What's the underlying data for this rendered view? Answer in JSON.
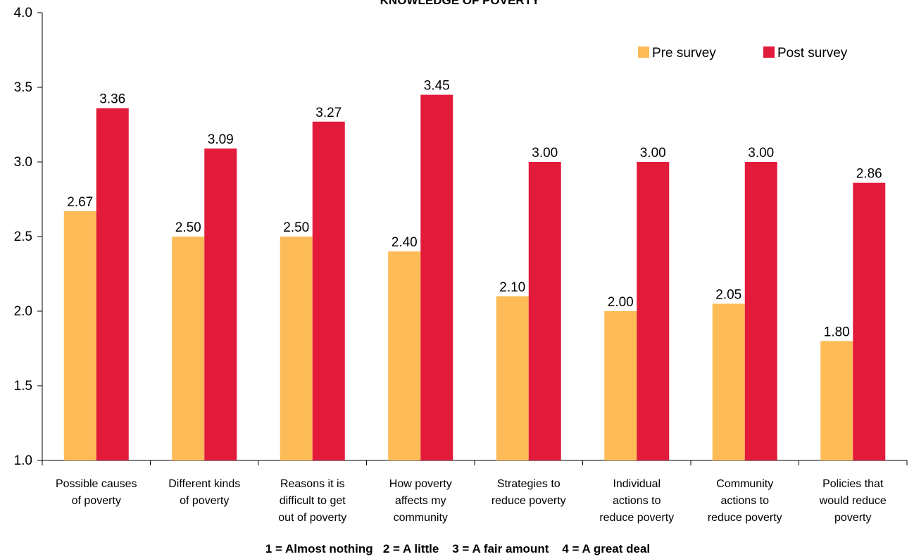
{
  "chart_data": {
    "type": "bar",
    "title": "KNOWLEDGE OF POVERTY",
    "xlabel": "1 = Almost nothing   2 = A little    3 = A fair amount    4 = A great deal",
    "ylabel": "",
    "ylim": [
      1.0,
      4.0
    ],
    "yticks": [
      "1.0",
      "1.5",
      "2.0",
      "2.5",
      "3.0",
      "3.5",
      "4.0"
    ],
    "grid": false,
    "legend_position": "top-right",
    "categories": [
      [
        "Possible causes",
        "of poverty"
      ],
      [
        "Different kinds",
        "of poverty"
      ],
      [
        "Reasons it is",
        "difficult to get",
        "out of poverty"
      ],
      [
        "How poverty",
        "affects my",
        "community"
      ],
      [
        "Strategies to",
        "reduce poverty"
      ],
      [
        "Individual",
        "actions to",
        "reduce poverty"
      ],
      [
        "Community",
        "actions to",
        "reduce poverty"
      ],
      [
        "Policies that",
        "would reduce",
        "poverty"
      ]
    ],
    "series": [
      {
        "name": "Pre survey",
        "color": "#FDBB57",
        "values": [
          2.67,
          2.5,
          2.5,
          2.4,
          2.1,
          2.0,
          2.05,
          1.8
        ],
        "labels": [
          "2.67",
          "2.50",
          "2.50",
          "2.40",
          "2.10",
          "2.00",
          "2.05",
          "1.80"
        ]
      },
      {
        "name": "Post survey",
        "color": "#E31B3B",
        "values": [
          3.36,
          3.09,
          3.27,
          3.45,
          3.0,
          3.0,
          3.0,
          2.86
        ],
        "labels": [
          "3.36",
          "3.09",
          "3.27",
          "3.45",
          "3.00",
          "3.00",
          "3.00",
          "2.86"
        ]
      }
    ]
  }
}
